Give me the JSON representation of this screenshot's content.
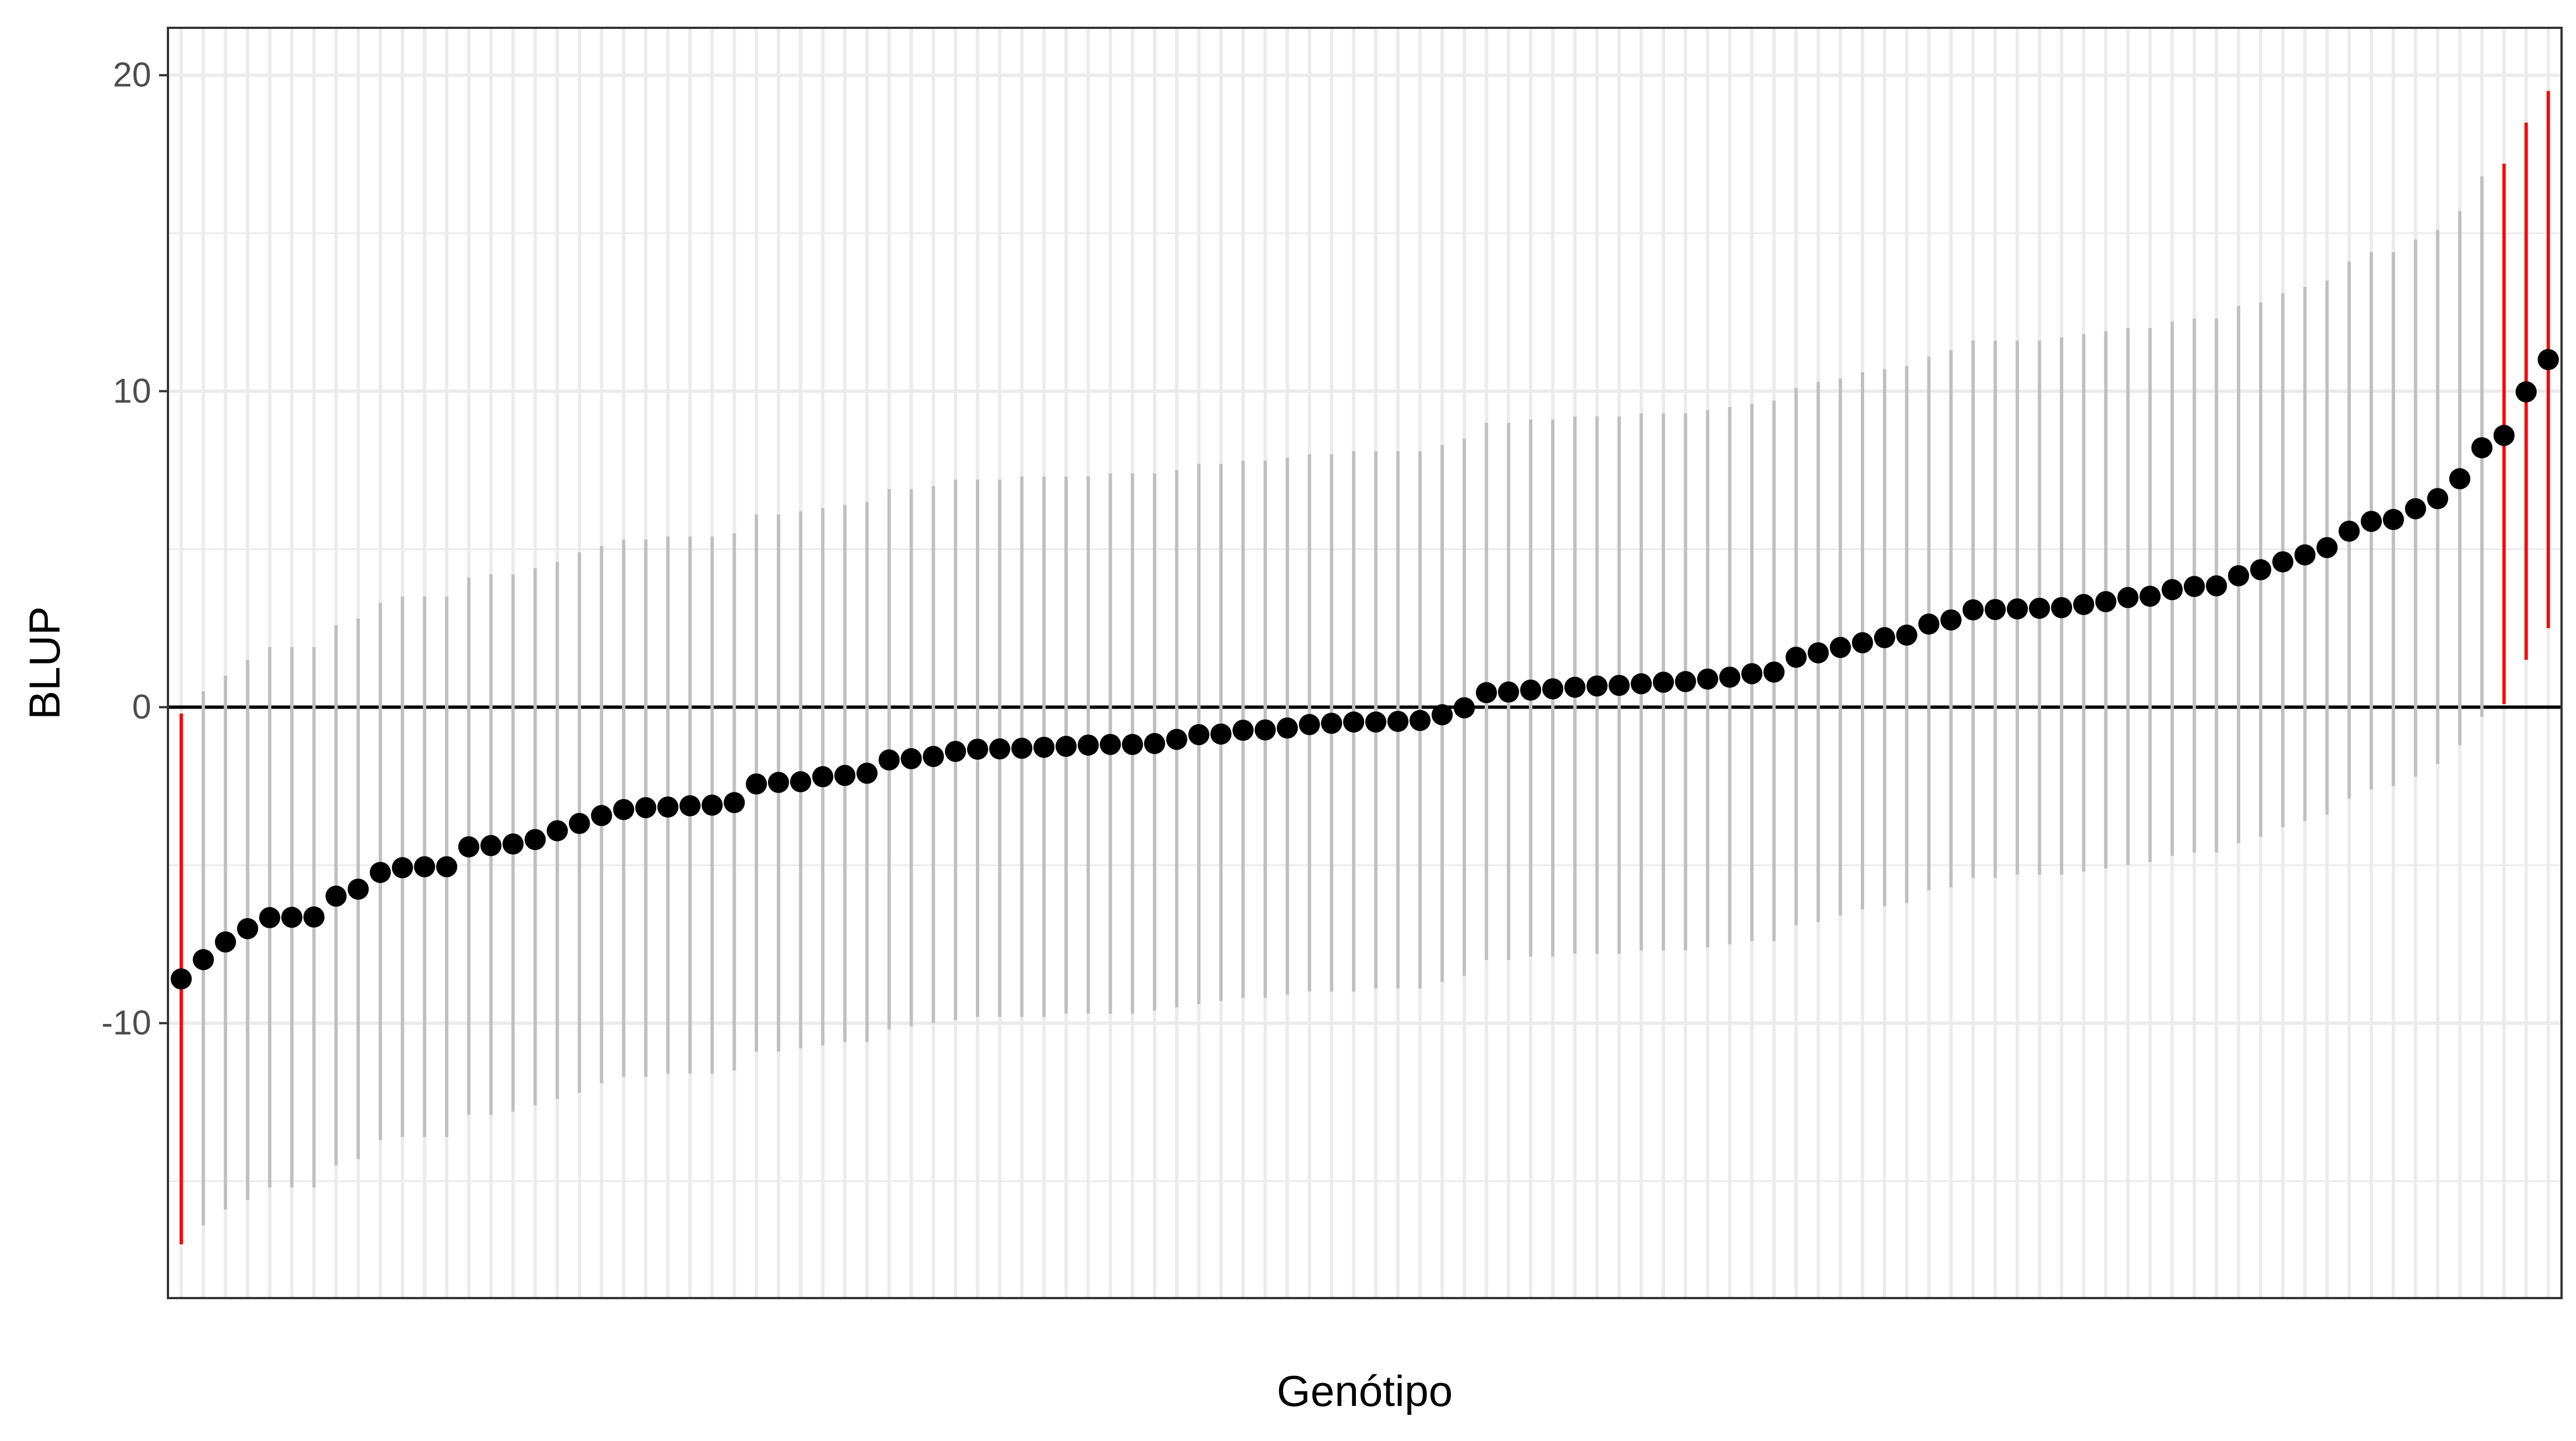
{
  "chart_data": {
    "type": "scatter",
    "title": "",
    "xlabel": "Genótipo",
    "ylabel": "BLUP",
    "ylim": [
      -18.7,
      21.5
    ],
    "yticks": [
      -10,
      0,
      10,
      20
    ],
    "ytick_labels": [
      "-10",
      "0",
      "10",
      "20"
    ],
    "reference_line_y": 0,
    "grid": true,
    "theme": "bw",
    "colors": {
      "point": "#000000",
      "interval_ns": "#bfbfbf",
      "interval_sig": "#ff0000",
      "grid": "#ebebeb",
      "zero_line": "#000000",
      "border": "#333333"
    },
    "series": [
      {
        "values": [
          -8.6,
          -7.99,
          -7.43,
          -7.01,
          -6.66,
          -6.65,
          -6.64,
          -5.98,
          -5.76,
          -5.23,
          -5.08,
          -5.05,
          -5.05,
          -4.42,
          -4.38,
          -4.33,
          -4.19,
          -3.91,
          -3.68,
          -3.43,
          -3.24,
          -3.18,
          -3.16,
          -3.12,
          -3.1,
          -3.02,
          -2.43,
          -2.38,
          -2.36,
          -2.2,
          -2.16,
          -2.09,
          -1.67,
          -1.63,
          -1.56,
          -1.4,
          -1.33,
          -1.32,
          -1.3,
          -1.27,
          -1.24,
          -1.2,
          -1.18,
          -1.18,
          -1.15,
          -1.02,
          -0.87,
          -0.85,
          -0.73,
          -0.72,
          -0.66,
          -0.55,
          -0.51,
          -0.47,
          -0.47,
          -0.45,
          -0.42,
          -0.24,
          -0.02,
          0.46,
          0.48,
          0.54,
          0.58,
          0.63,
          0.67,
          0.69,
          0.74,
          0.79,
          0.81,
          0.89,
          0.95,
          1.06,
          1.11,
          1.58,
          1.72,
          1.89,
          2.04,
          2.2,
          2.28,
          2.63,
          2.76,
          3.08,
          3.09,
          3.11,
          3.13,
          3.15,
          3.25,
          3.34,
          3.47,
          3.51,
          3.72,
          3.82,
          3.84,
          4.16,
          4.35,
          4.6,
          4.82,
          5.05,
          5.57,
          5.88,
          5.94,
          6.28,
          6.6,
          7.23,
          8.21,
          8.6,
          9.98,
          11.0
        ],
        "lower": [
          -17.0,
          -16.4,
          -15.9,
          -15.6,
          -15.2,
          -15.2,
          -15.2,
          -14.5,
          -14.3,
          -13.7,
          -13.6,
          -13.6,
          -13.6,
          -12.9,
          -12.9,
          -12.8,
          -12.6,
          -12.4,
          -12.2,
          -11.9,
          -11.7,
          -11.7,
          -11.6,
          -11.6,
          -11.6,
          -11.5,
          -10.9,
          -10.9,
          -10.8,
          -10.7,
          -10.6,
          -10.6,
          -10.2,
          -10.1,
          -10.0,
          -9.9,
          -9.8,
          -9.8,
          -9.8,
          -9.8,
          -9.7,
          -9.7,
          -9.7,
          -9.7,
          -9.6,
          -9.5,
          -9.4,
          -9.3,
          -9.2,
          -9.2,
          -9.1,
          -9.0,
          -9.0,
          -9.0,
          -8.9,
          -8.9,
          -8.9,
          -8.7,
          -8.5,
          -8.0,
          -8.0,
          -7.9,
          -7.9,
          -7.8,
          -7.8,
          -7.8,
          -7.7,
          -7.7,
          -7.7,
          -7.6,
          -7.5,
          -7.4,
          -7.4,
          -6.9,
          -6.8,
          -6.6,
          -6.4,
          -6.3,
          -6.2,
          -5.8,
          -5.7,
          -5.4,
          -5.4,
          -5.3,
          -5.3,
          -5.3,
          -5.2,
          -5.1,
          -5.0,
          -4.9,
          -4.7,
          -4.6,
          -4.6,
          -4.3,
          -4.1,
          -3.8,
          -3.6,
          -3.4,
          -2.9,
          -2.6,
          -2.5,
          -2.2,
          -1.8,
          -1.2,
          -0.3,
          0.1,
          1.5,
          2.5
        ],
        "upper": [
          -0.2,
          0.5,
          1.0,
          1.5,
          1.9,
          1.9,
          1.9,
          2.6,
          2.8,
          3.3,
          3.5,
          3.5,
          3.5,
          4.1,
          4.2,
          4.2,
          4.4,
          4.6,
          4.9,
          5.1,
          5.3,
          5.3,
          5.4,
          5.4,
          5.4,
          5.5,
          6.1,
          6.1,
          6.2,
          6.3,
          6.4,
          6.5,
          6.9,
          6.9,
          7.0,
          7.2,
          7.2,
          7.2,
          7.3,
          7.3,
          7.3,
          7.3,
          7.4,
          7.4,
          7.4,
          7.5,
          7.7,
          7.7,
          7.8,
          7.8,
          7.9,
          8.0,
          8.0,
          8.1,
          8.1,
          8.1,
          8.1,
          8.3,
          8.5,
          9.0,
          9.0,
          9.1,
          9.1,
          9.2,
          9.2,
          9.2,
          9.3,
          9.3,
          9.3,
          9.4,
          9.5,
          9.6,
          9.7,
          10.1,
          10.3,
          10.4,
          10.6,
          10.7,
          10.8,
          11.1,
          11.3,
          11.6,
          11.6,
          11.6,
          11.6,
          11.7,
          11.8,
          11.9,
          12.0,
          12.0,
          12.2,
          12.3,
          12.3,
          12.7,
          12.8,
          13.1,
          13.3,
          13.5,
          14.1,
          14.4,
          14.4,
          14.8,
          15.1,
          15.7,
          16.8,
          17.2,
          18.5,
          19.5
        ],
        "significant": [
          true,
          false,
          false,
          false,
          false,
          false,
          false,
          false,
          false,
          false,
          false,
          false,
          false,
          false,
          false,
          false,
          false,
          false,
          false,
          false,
          false,
          false,
          false,
          false,
          false,
          false,
          false,
          false,
          false,
          false,
          false,
          false,
          false,
          false,
          false,
          false,
          false,
          false,
          false,
          false,
          false,
          false,
          false,
          false,
          false,
          false,
          false,
          false,
          false,
          false,
          false,
          false,
          false,
          false,
          false,
          false,
          false,
          false,
          false,
          false,
          false,
          false,
          false,
          false,
          false,
          false,
          false,
          false,
          false,
          false,
          false,
          false,
          false,
          false,
          false,
          false,
          false,
          false,
          false,
          false,
          false,
          false,
          false,
          false,
          false,
          false,
          false,
          false,
          false,
          false,
          false,
          false,
          false,
          false,
          false,
          false,
          false,
          false,
          false,
          false,
          false,
          false,
          false,
          false,
          false,
          true,
          true,
          true
        ]
      }
    ]
  }
}
